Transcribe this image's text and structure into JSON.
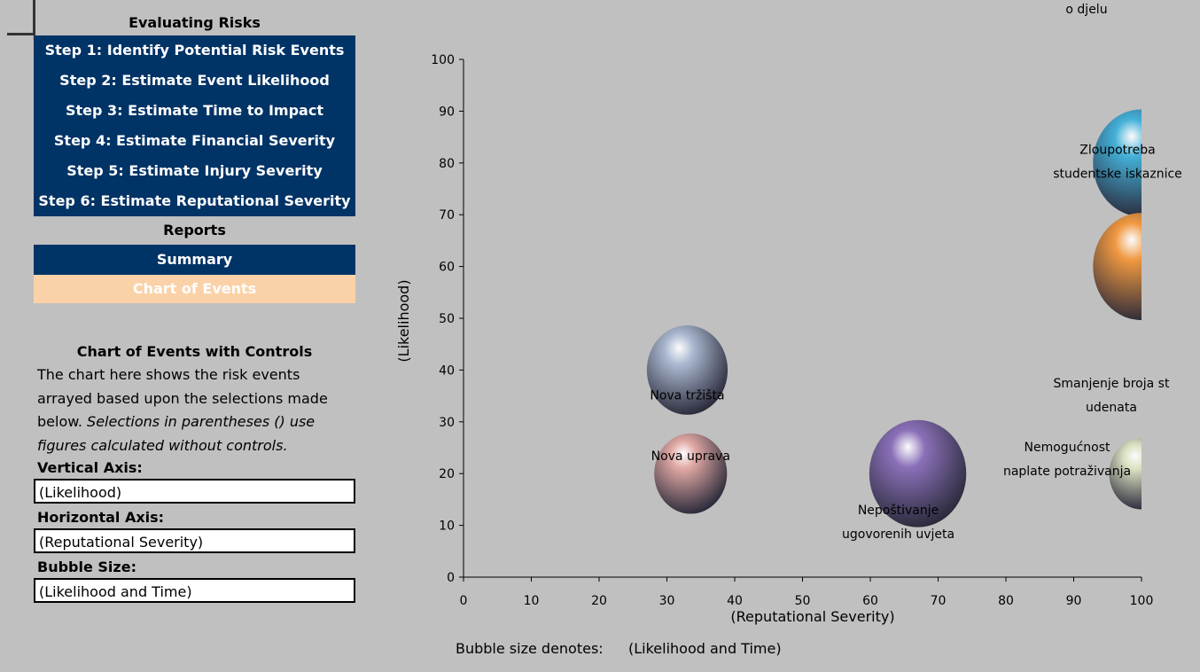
{
  "sidebar": {
    "header": "Evaluating Risks",
    "steps": [
      "Step 1: Identify Potential Risk Events",
      "Step 2: Estimate Event Likelihood",
      "Step 3: Estimate Time to Impact",
      "Step 4: Estimate Financial Severity",
      "Step 5: Estimate Injury Severity",
      "Step 6: Estimate Reputational Severity"
    ],
    "reports_header": "Reports",
    "summary_label": "Summary",
    "chart_label": "Chart of Events"
  },
  "description": {
    "title": "Chart of Events with Controls",
    "text": "The chart here shows the risk events arrayed based upon the selections made below.",
    "italic_text": "Selections in parentheses () use figures calculated without controls."
  },
  "controls": {
    "vertical_label": "Vertical Axis:",
    "vertical_value": "(Likelihood)",
    "horizontal_label": "Horizontal Axis:",
    "horizontal_value": "(Reputational Severity)",
    "bubble_label": "Bubble Size:",
    "bubble_value": "(Likelihood and Time)"
  },
  "colors": {
    "nav_bg": "#003366",
    "nav_active_bg": "#fbd2a8",
    "background": "#c0c0c0"
  },
  "chart_data": {
    "type": "scatter",
    "subtype": "bubble",
    "xlabel": "(Reputational Severity)",
    "ylabel": "(Likelihood)",
    "xlim": [
      0,
      100
    ],
    "ylim": [
      0,
      100
    ],
    "xticks": [
      0,
      10,
      20,
      30,
      40,
      50,
      60,
      70,
      80,
      90,
      100
    ],
    "yticks": [
      0,
      10,
      20,
      30,
      40,
      50,
      60,
      70,
      80,
      90,
      100
    ],
    "grid": false,
    "footer_label": "Bubble size denotes:",
    "footer_value": "(Likelihood and Time)",
    "points": [
      {
        "label": "Nova tržišta",
        "x": 33,
        "y": 40,
        "size": 40,
        "color": "#aab8d0"
      },
      {
        "label": "Nova uprava",
        "x": 33.5,
        "y": 20,
        "size": 36,
        "color": "#e0a8a4"
      },
      {
        "label": "Nepoštivanje ugovorenih uvjeta",
        "x": 67,
        "y": 20,
        "size": 48,
        "color": "#8a70b8"
      },
      {
        "label": "Zloupotreba ugovora o djelu",
        "x": 100,
        "y": 80,
        "size": 48,
        "color": "#44b0d8"
      },
      {
        "label": "Zloupotreba studentske iskaznice",
        "x": 100,
        "y": 60,
        "size": 48,
        "color": "#f09840"
      },
      {
        "label": "Smanjenje broja studenata",
        "x": 100,
        "y": 20,
        "size": 32,
        "color": "#d8e0c0"
      },
      {
        "label": "Nemogućnost naplate potraživanja",
        "x": 100,
        "y": 20,
        "size": 32,
        "color": "#d8e0c0"
      }
    ]
  }
}
